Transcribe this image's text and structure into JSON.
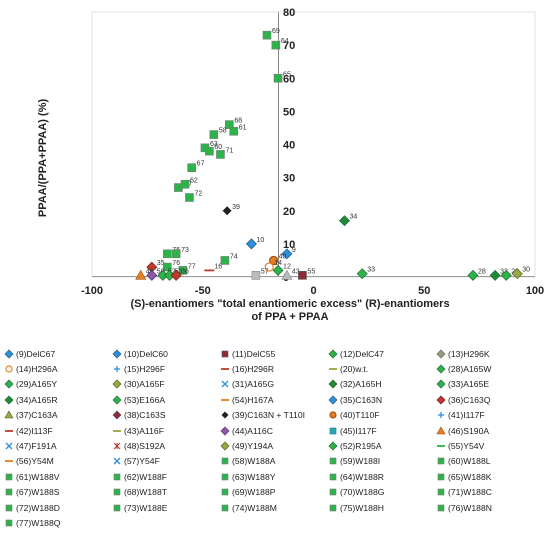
{
  "chart_data": {
    "type": "scatter",
    "ylabel": "PPAA/(PPA+PPAA) (%)",
    "xlabel_line1": "(S)-enantiomers  \"total enantiomeric excess\" (R)-enantiomers",
    "xlabel_line2": "of PPA + PPAA",
    "xlim": [
      -100,
      100
    ],
    "ylim": [
      0,
      80
    ],
    "x_ticks": [
      "-100",
      "-50",
      "0",
      "50",
      "100"
    ],
    "y_ticks": [
      "0",
      "10",
      "20",
      "30",
      "40",
      "50",
      "60",
      "70",
      "80"
    ],
    "grid": false,
    "legend_position": "bottom",
    "points": [
      {
        "label": "69",
        "x": -21,
        "y": 73
      },
      {
        "label": "64",
        "x": -17,
        "y": 70
      },
      {
        "label": "65",
        "x": -16,
        "y": 60
      },
      {
        "label": "68",
        "x": -38,
        "y": 46
      },
      {
        "label": "61",
        "x": -36,
        "y": 44
      },
      {
        "label": "58",
        "x": -45,
        "y": 43
      },
      {
        "label": "63",
        "x": -49,
        "y": 39
      },
      {
        "label": "60",
        "x": -47,
        "y": 38
      },
      {
        "label": "71",
        "x": -42,
        "y": 37
      },
      {
        "label": "67",
        "x": -55,
        "y": 33
      },
      {
        "label": "70",
        "x": -61,
        "y": 27
      },
      {
        "label": "62",
        "x": -58,
        "y": 28
      },
      {
        "label": "72",
        "x": -56,
        "y": 24
      },
      {
        "label": "39",
        "x": -39,
        "y": 20
      },
      {
        "label": "34",
        "x": 14,
        "y": 17
      },
      {
        "label": "10",
        "x": -28,
        "y": 10
      },
      {
        "label": "75",
        "x": -66,
        "y": 7
      },
      {
        "label": "73",
        "x": -62,
        "y": 7
      },
      {
        "label": "9",
        "x": -12,
        "y": 7
      },
      {
        "label": "40",
        "x": -18,
        "y": 5
      },
      {
        "label": "74",
        "x": -40,
        "y": 5
      },
      {
        "label": "35",
        "x": -73,
        "y": 3
      },
      {
        "label": "76",
        "x": -66,
        "y": 3
      },
      {
        "label": "77",
        "x": -59,
        "y": 2
      },
      {
        "label": "16",
        "x": -47,
        "y": 2
      },
      {
        "label": "12",
        "x": -16,
        "y": 2
      },
      {
        "label": "14",
        "x": -20,
        "y": 3
      },
      {
        "label": "46",
        "x": -78,
        "y": 0.5
      },
      {
        "label": "50",
        "x": -73,
        "y": 0.5
      },
      {
        "label": "52",
        "x": -68,
        "y": 0.5
      },
      {
        "label": "53",
        "x": -65,
        "y": 0.5
      },
      {
        "label": "36",
        "x": -62,
        "y": 0.5
      },
      {
        "label": "57",
        "x": -26,
        "y": 0.5
      },
      {
        "label": "43",
        "x": -12,
        "y": 0.5
      },
      {
        "label": "55",
        "x": -5,
        "y": 0.5
      },
      {
        "label": "33",
        "x": 22,
        "y": 1
      },
      {
        "label": "28",
        "x": 72,
        "y": 0.5
      },
      {
        "label": "32",
        "x": 82,
        "y": 0.5
      },
      {
        "label": "29",
        "x": 87,
        "y": 0.5
      },
      {
        "label": "30",
        "x": 92,
        "y": 1
      }
    ]
  },
  "legend": [
    "(9)DelC67",
    "(10)DelC60",
    "(11)DelC55",
    "(12)DelC47",
    "(13)H296K",
    "(14)H296A",
    "(15)H296F",
    "(16)H296R",
    "(20)w.t.",
    "(28)A165W",
    "(29)A165Y",
    "(30)A165F",
    "(31)A165G",
    "(32)A165H",
    "(33)A165E",
    "(34)A165R",
    "(53)E166A",
    "(54)H167A",
    "(35)C163N",
    "(36)C163Q",
    "(37)C163A",
    "(38)C163S",
    "(39)C163N + T110I",
    "(40)T110F",
    "(41)I117F",
    "(42)I113F",
    "(43)A116F",
    "(44)A116C",
    "(45)I117F",
    "(46)S190A",
    "(47)F191A",
    "(48)S192A",
    "(49)Y194A",
    "(52)R195A",
    "(55)Y54V",
    "(56)Y54M",
    "(57)Y54F",
    "(58)W188A",
    "(59)W188I",
    "(60)W188L",
    "(61)W188V",
    "(62)W188F",
    "(63)W188Y",
    "(64)W188R",
    "(65)W188K",
    "(67)W188S",
    "(68)W188T",
    "(69)W188P",
    "(70)W188G",
    "(71)W188C",
    "(72)W188D",
    "(73)W188E",
    "(74)W188M",
    "(75)W188H",
    "(76)W188N",
    "(77)W188Q"
  ],
  "colors": {
    "green": "#2db34a",
    "green_dark": "#1f8a3a",
    "blue": "#2f8fd8",
    "red": "#c0392b",
    "maroon": "#8e2b3a",
    "orange": "#e67e22",
    "olive": "#9aa640",
    "purple": "#8e5aa8",
    "cyan": "#27a9b5",
    "black": "#222222"
  }
}
